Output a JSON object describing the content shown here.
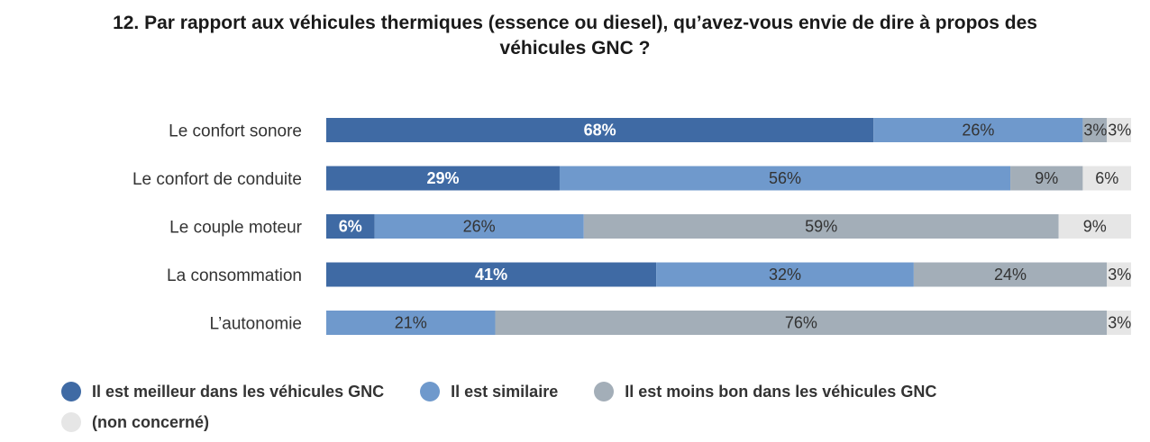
{
  "title_line1": "12. Par rapport aux véhicules thermiques (essence ou diesel), qu’avez-vous envie de dire à propos des",
  "title_line2": "véhicules GNC ?",
  "chart_data": {
    "type": "bar",
    "orientation": "horizontal-stacked-100",
    "categories": [
      "Le confort sonore",
      "Le confort de conduite",
      "Le couple moteur",
      "La consommation",
      "L’autonomie"
    ],
    "series": [
      {
        "name": "Il est meilleur dans les véhicules GNC",
        "color": "#3f6aa4",
        "label_color": "#ffffff",
        "values": [
          68,
          29,
          6,
          41,
          0
        ]
      },
      {
        "name": "Il est similaire",
        "color": "#6f99cc",
        "label_color": "#333333",
        "values": [
          26,
          56,
          26,
          32,
          21
        ]
      },
      {
        "name": "Il est moins bon dans les véhicules GNC",
        "color": "#a3aeb8",
        "label_color": "#333333",
        "values": [
          3,
          9,
          59,
          24,
          76
        ]
      },
      {
        "name": "(non concerné)",
        "color": "#e6e6e6",
        "label_color": "#333333",
        "values": [
          3,
          6,
          9,
          3,
          3
        ]
      }
    ],
    "value_suffix": "%",
    "xlim": [
      0,
      100
    ],
    "legend_position": "bottom"
  }
}
